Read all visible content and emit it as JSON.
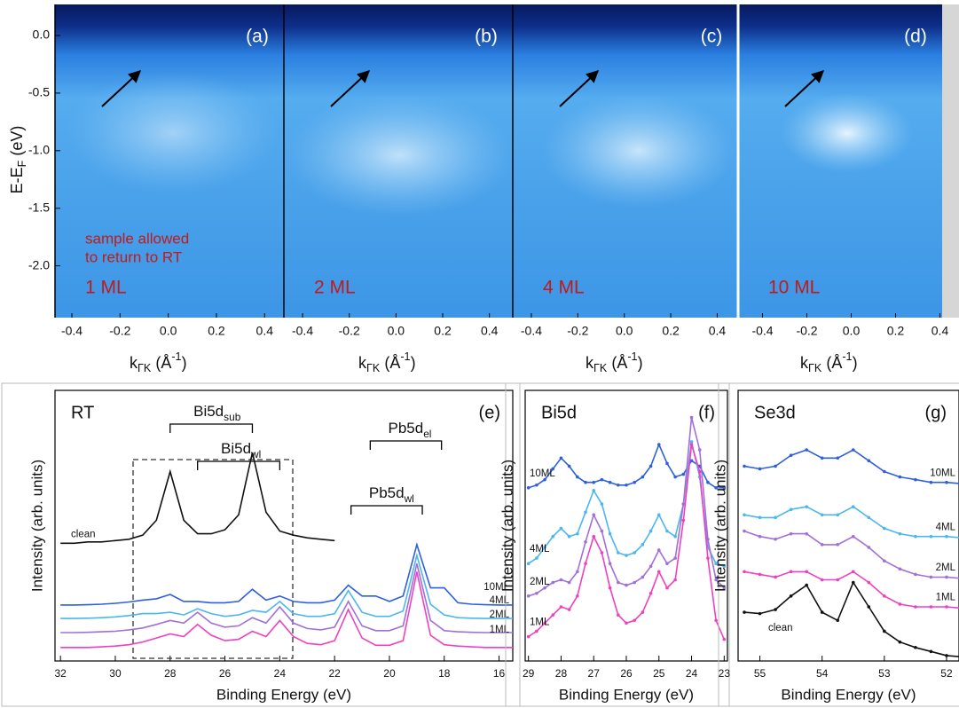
{
  "chart_data": [
    {
      "type": "image",
      "label": "(a)",
      "thickness": "1 ML",
      "note": [
        "sample allowed",
        "to return to RT"
      ],
      "x_label": [
        "k",
        "ΓK",
        " (Å",
        "-1",
        ")"
      ],
      "y_label": [
        "E-E",
        "F",
        " (eV)"
      ],
      "xlim": [
        -0.47,
        0.48
      ],
      "xticks": [
        -0.4,
        -0.2,
        {
          "value": 0,
          "label": "0.0"
        },
        0.2,
        0.4
      ],
      "ylim": [
        -2.45,
        0.27
      ],
      "yticks": [
        {
          "value": 0,
          "label": "0.0"
        },
        -0.5,
        {
          "value": -1,
          "label": "-1.0"
        },
        -1.5,
        {
          "value": -2,
          "label": "-2.0"
        }
      ]
    },
    {
      "type": "image",
      "label": "(b)",
      "thickness": "2 ML",
      "x_label": [
        "k",
        "ΓK",
        " (Å",
        "-1",
        ")"
      ],
      "xlim": [
        -0.48,
        0.5
      ],
      "xticks": [
        -0.4,
        -0.2,
        {
          "value": 0,
          "label": "0.0"
        },
        0.2,
        0.4
      ],
      "ylim": [
        -2.45,
        0.27
      ]
    },
    {
      "type": "image",
      "label": "(c)",
      "thickness": "4 ML",
      "x_label": [
        "k",
        "ΓK",
        " (Å",
        "-1",
        ")"
      ],
      "xlim": [
        -0.48,
        0.49
      ],
      "xticks": [
        -0.4,
        -0.2,
        {
          "value": 0,
          "label": "0.0"
        },
        0.2,
        0.4
      ],
      "ylim": [
        -2.45,
        0.27
      ]
    },
    {
      "type": "image",
      "label": "(d)",
      "thickness": "10 ML",
      "x_label": [
        "k",
        "ΓK",
        " (Å",
        "-1",
        ")"
      ],
      "xlim": [
        -0.51,
        0.41
      ],
      "xticks": [
        -0.4,
        -0.2,
        {
          "value": 0,
          "label": "0.0"
        },
        0.2,
        0.4
      ],
      "ylim": [
        -2.45,
        0.27
      ]
    },
    {
      "type": "line",
      "title": "RT",
      "label": "(e)",
      "x_label": "Binding Energy (eV)",
      "y_label": "Intensity (arb. units)",
      "annotations": [
        [
          "Bi5d",
          "sub"
        ],
        [
          "Bi5d",
          "wl"
        ],
        [
          "Pb5d",
          "el"
        ],
        [
          "Pb5d",
          "wl"
        ]
      ],
      "xlim": [
        32.2,
        15.5
      ],
      "xticks": [
        32,
        30,
        28,
        26,
        24,
        22,
        20,
        18,
        16
      ],
      "ylim": [
        0,
        100
      ],
      "x": [
        32,
        31.5,
        31,
        30.5,
        30,
        29.5,
        29,
        28.5,
        28,
        27.5,
        27,
        26.5,
        26,
        25.5,
        25,
        24.5,
        24,
        23.5,
        23,
        22.5,
        22,
        21.5,
        21,
        20.5,
        20,
        19.5,
        19,
        18.5,
        18,
        17.5,
        17,
        16.5,
        16,
        15.5
      ],
      "series": [
        {
          "name": "clean",
          "color": "#111111",
          "values": [
            43.5,
            43.5,
            44,
            44,
            44.5,
            45,
            46.5,
            52,
            70,
            52,
            47,
            47,
            48.5,
            54,
            77,
            55,
            48,
            46.5,
            45.5,
            45,
            44.5,
            null,
            null,
            null,
            null,
            null,
            null,
            null,
            null,
            null,
            null,
            null,
            null,
            null
          ]
        },
        {
          "name": "10ML",
          "color": "#2d5fe0",
          "values": [
            20.7,
            20.7,
            20.8,
            21,
            21.3,
            21.8,
            22.5,
            23,
            24.6,
            22,
            22,
            21.5,
            21.5,
            22,
            26.5,
            22.5,
            24,
            22,
            21.5,
            21.5,
            22.5,
            28,
            24,
            24,
            22,
            24,
            43,
            27,
            27,
            21.5,
            21,
            20.8,
            20.7,
            20.7
          ]
        },
        {
          "name": "4ML",
          "color": "#4cb6ee",
          "values": [
            15.7,
            15.7,
            15.8,
            16,
            16.3,
            16.8,
            17.5,
            17.5,
            18,
            17,
            19.3,
            17.5,
            16.5,
            17,
            18.7,
            18,
            22,
            17.5,
            16.5,
            16.5,
            17.5,
            26,
            18,
            16.5,
            16.5,
            18.5,
            39,
            21,
            17,
            16,
            15.8,
            15.7,
            15.7,
            15.7
          ]
        },
        {
          "name": "2ML",
          "color": "#a070d8",
          "values": [
            10.5,
            10.5,
            10.6,
            10.8,
            11,
            11.5,
            12.2,
            13.5,
            15,
            14,
            18,
            14,
            12.5,
            13,
            16,
            14,
            20,
            14,
            12,
            11.5,
            12.5,
            22,
            13,
            11.2,
            11.2,
            13,
            36,
            15,
            11.2,
            10.8,
            10.6,
            10.5,
            10.5,
            10.5
          ]
        },
        {
          "name": "1ML",
          "color": "#f040c0",
          "values": [
            5,
            5,
            5,
            5.2,
            5.5,
            6,
            7,
            8.5,
            10,
            9,
            13.5,
            9.5,
            7.5,
            8,
            11,
            9,
            15,
            9,
            6.5,
            6,
            7.5,
            19,
            8.5,
            5.8,
            5.8,
            7.5,
            33,
            9.5,
            6,
            5.5,
            5.2,
            5,
            5,
            5
          ]
        }
      ]
    },
    {
      "type": "line",
      "title": "Bi5d",
      "label": "(f)",
      "x_label": "Binding Energy (eV)",
      "y_label": "Intensity (arb. units)",
      "markers": true,
      "xlim": [
        29.1,
        22.9
      ],
      "xticks": [
        29,
        28,
        27,
        26,
        25,
        24,
        23
      ],
      "ylim": [
        0,
        100
      ],
      "x": [
        29,
        28.75,
        28.5,
        28.25,
        28,
        27.75,
        27.5,
        27.25,
        27,
        26.75,
        26.5,
        26.25,
        26,
        25.75,
        25.5,
        25.25,
        25,
        24.75,
        24.5,
        24.25,
        24,
        23.75,
        23.5,
        23.25,
        23
      ],
      "series": [
        {
          "name": "10ML",
          "color": "#2d5fe0",
          "values": [
            64,
            65,
            67,
            71,
            75,
            72,
            68,
            66,
            66,
            67,
            66,
            65,
            65,
            66,
            68,
            72,
            80,
            73,
            68,
            69,
            74,
            72,
            66,
            64,
            64
          ]
        },
        {
          "name": "4ML",
          "color": "#4cb6ee",
          "values": [
            36,
            38,
            42,
            46,
            49,
            46,
            47,
            55,
            63,
            58,
            47,
            40,
            39,
            40,
            43,
            48,
            54,
            48,
            46,
            58,
            81,
            68,
            42,
            36,
            35
          ]
        },
        {
          "name": "2ML",
          "color": "#a070d8",
          "values": [
            24,
            25,
            27,
            29,
            30,
            29,
            33,
            44,
            54,
            48,
            36,
            29,
            28,
            29,
            31,
            35,
            41,
            36,
            38,
            58,
            90,
            78,
            45,
            30,
            27
          ]
        },
        {
          "name": "1ML",
          "color": "#f040c0",
          "values": [
            9,
            11,
            14,
            17,
            20,
            19,
            24,
            36,
            46,
            40,
            27,
            17,
            14,
            15,
            18,
            25,
            33,
            27,
            30,
            52,
            80,
            70,
            38,
            15,
            8
          ]
        }
      ]
    },
    {
      "type": "line",
      "title": "Se3d",
      "label": "(g)",
      "x_label": "Binding Energy (eV)",
      "y_label": "Intensity (arb. units)",
      "markers": true,
      "xlim": [
        55.35,
        51.8
      ],
      "xticks": [
        55,
        54,
        53,
        52
      ],
      "ylim": [
        0,
        100
      ],
      "x": [
        55.25,
        55,
        54.75,
        54.5,
        54.25,
        54,
        53.75,
        53.5,
        53.25,
        53,
        52.75,
        52.5,
        52.25,
        52,
        51.75
      ],
      "series": [
        {
          "name": "10ML",
          "color": "#2d5fe0",
          "values": [
            72,
            71,
            72,
            76,
            78,
            75,
            75,
            78,
            74,
            70,
            68,
            67,
            66,
            66,
            65.5
          ]
        },
        {
          "name": "4ML",
          "color": "#4cb6ee",
          "values": [
            54,
            53,
            53,
            56,
            57,
            54,
            54,
            57,
            53,
            49,
            47,
            46,
            46,
            46,
            45.5
          ]
        },
        {
          "name": "2ML",
          "color": "#a070d8",
          "values": [
            48,
            46,
            45,
            47,
            47,
            43,
            43,
            46,
            42,
            37,
            34,
            32,
            31,
            31,
            30.5
          ]
        },
        {
          "name": "1ML",
          "color": "#f040c0",
          "values": [
            33,
            32,
            31,
            33,
            33,
            30,
            30,
            33,
            29,
            24,
            21,
            20,
            20,
            20,
            19.5
          ]
        },
        {
          "name": "clean",
          "color": "#111111",
          "values": [
            18,
            17.5,
            19,
            24,
            28,
            18,
            15,
            29,
            20,
            11,
            7,
            5,
            3.5,
            2,
            1.5
          ]
        }
      ]
    }
  ]
}
